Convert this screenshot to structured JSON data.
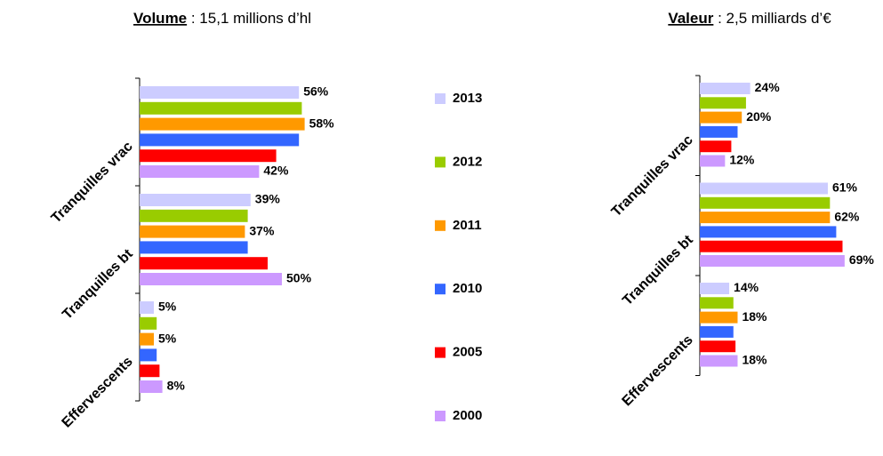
{
  "chart_data": [
    {
      "type": "bar",
      "orientation": "horizontal",
      "title_label": "Volume",
      "title_text": " : 15,1 millions d’hl",
      "categories": [
        "Tranquilles vrac",
        "Tranquilles bt",
        "Effervescents"
      ],
      "series": [
        {
          "name": "2013",
          "color": "#ccccff",
          "values": [
            56,
            39,
            5
          ],
          "value_labels": [
            "56%",
            "39%",
            "5%"
          ]
        },
        {
          "name": "2012",
          "color": "#99cc00",
          "values": [
            57,
            38,
            6
          ]
        },
        {
          "name": "2011",
          "color": "#ff9900",
          "values": [
            58,
            37,
            5
          ],
          "value_labels": [
            "58%",
            "37%",
            "5%"
          ]
        },
        {
          "name": "2010",
          "color": "#3366ff",
          "values": [
            56,
            38,
            6
          ]
        },
        {
          "name": "2005",
          "color": "#ff0000",
          "values": [
            48,
            45,
            7
          ]
        },
        {
          "name": "2000",
          "color": "#cc99ff",
          "values": [
            42,
            50,
            8
          ],
          "value_labels": [
            "42%",
            "50%",
            "8%"
          ]
        }
      ]
    },
    {
      "type": "bar",
      "orientation": "horizontal",
      "title_label": "Valeur",
      "title_text": " : 2,5 milliards d’€",
      "categories": [
        "Tranquilles vrac",
        "Tranquilles bt",
        "Effervescents"
      ],
      "series": [
        {
          "color": "#ccccff",
          "values": [
            24,
            61,
            14
          ],
          "value_labels": [
            "24%",
            "61%",
            "14%"
          ]
        },
        {
          "color": "#99cc00",
          "values": [
            22,
            62,
            16
          ]
        },
        {
          "color": "#ff9900",
          "values": [
            20,
            62,
            18
          ],
          "value_labels": [
            "20%",
            "62%",
            "18%"
          ]
        },
        {
          "color": "#3366ff",
          "values": [
            18,
            65,
            16
          ]
        },
        {
          "color": "#ff0000",
          "values": [
            15,
            68,
            17
          ]
        },
        {
          "color": "#cc99ff",
          "values": [
            12,
            69,
            18
          ],
          "value_labels": [
            "12%",
            "69%",
            "18%"
          ]
        }
      ]
    }
  ]
}
